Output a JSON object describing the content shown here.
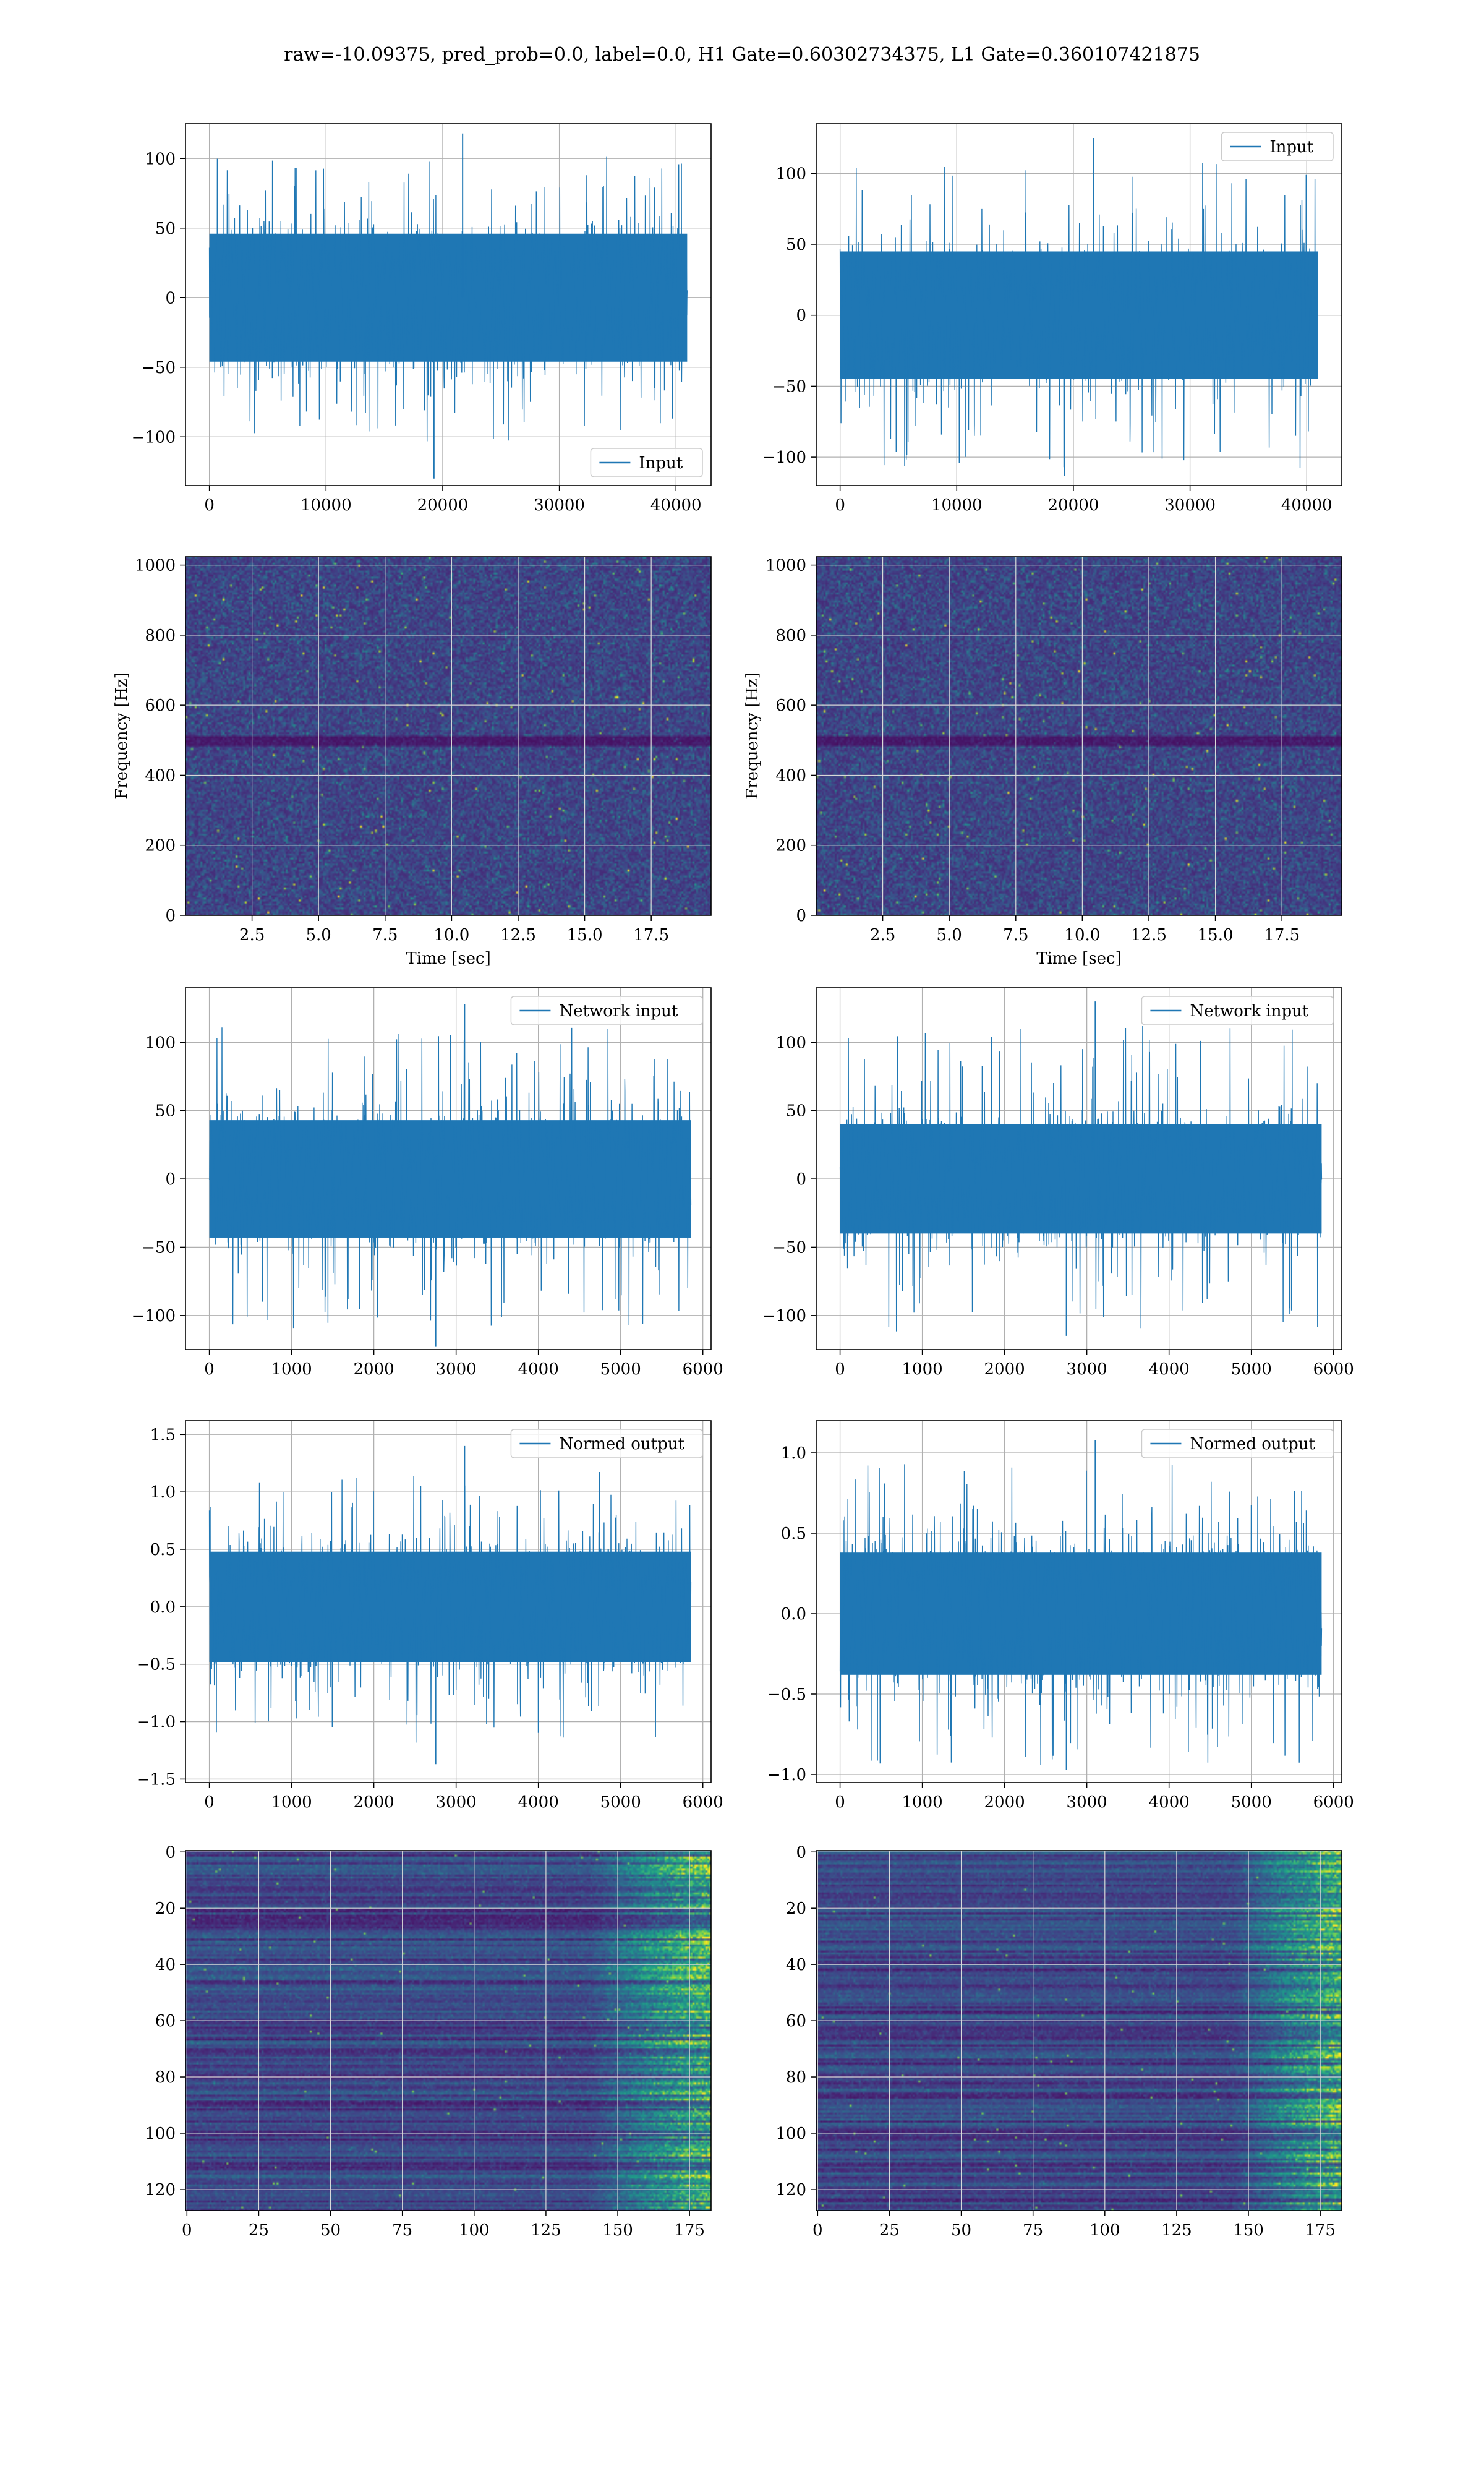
{
  "title": "raw=-10.09375, pred_prob=0.0, label=0.0, H1 Gate=0.60302734375, L1 Gate=0.360107421875",
  "colors": {
    "line": "#1f77b4",
    "grid": "#b0b0b0",
    "viridis_dark": "#440154",
    "viridis_mid": "#21918c",
    "viridis_bright": "#fde725"
  },
  "chart_data": [
    {
      "type": "line",
      "id": "h1-input",
      "xlim": [
        -2048,
        43008
      ],
      "ylim": [
        -135,
        125
      ],
      "xticks": [
        0,
        10000,
        20000,
        30000,
        40000
      ],
      "xticklabels": [
        "0",
        "10000",
        "20000",
        "30000",
        "40000"
      ],
      "yticks": [
        -100,
        -50,
        0,
        50,
        100
      ],
      "yticklabels": [
        "−100",
        "−50",
        "0",
        "50",
        "100"
      ],
      "x_range": [
        0,
        40959
      ],
      "noise_sigma": 22,
      "band": [
        -46,
        46
      ],
      "peak_max": 118,
      "peak_min": -130,
      "grid": true,
      "legend": "lower-right",
      "series": [
        {
          "name": "Input"
        }
      ]
    },
    {
      "type": "line",
      "id": "l1-input",
      "xlim": [
        -2048,
        43008
      ],
      "ylim": [
        -120,
        135
      ],
      "xticks": [
        0,
        10000,
        20000,
        30000,
        40000
      ],
      "xticklabels": [
        "0",
        "10000",
        "20000",
        "30000",
        "40000"
      ],
      "yticks": [
        -100,
        -50,
        0,
        50,
        100
      ],
      "yticklabels": [
        "−100",
        "−50",
        "0",
        "50",
        "100"
      ],
      "x_range": [
        0,
        40959
      ],
      "noise_sigma": 21,
      "band": [
        -45,
        45
      ],
      "peak_max": 125,
      "peak_min": -113,
      "grid": true,
      "legend": "upper-right",
      "series": [
        {
          "name": "Input"
        }
      ]
    },
    {
      "type": "heatmap",
      "id": "h1-spectrogram",
      "xlabel": "Time [sec]",
      "ylabel": "Frequency [Hz]",
      "xlim": [
        0,
        19.75
      ],
      "ylim": [
        0,
        1024
      ],
      "xticks": [
        2.5,
        5.0,
        7.5,
        10.0,
        12.5,
        15.0,
        17.5
      ],
      "xticklabels": [
        "2.5",
        "5.0",
        "7.5",
        "10.0",
        "12.5",
        "15.0",
        "17.5"
      ],
      "yticks": [
        0,
        200,
        400,
        600,
        800,
        1000
      ],
      "yticklabels": [
        "0",
        "200",
        "400",
        "600",
        "800",
        "1000"
      ],
      "colormap": "viridis",
      "dark_band_hz": 500,
      "grid": true
    },
    {
      "type": "heatmap",
      "id": "l1-spectrogram",
      "xlabel": "Time [sec]",
      "ylabel": "Frequency [Hz]",
      "xlim": [
        0,
        19.75
      ],
      "ylim": [
        0,
        1024
      ],
      "xticks": [
        2.5,
        5.0,
        7.5,
        10.0,
        12.5,
        15.0,
        17.5
      ],
      "xticklabels": [
        "2.5",
        "5.0",
        "7.5",
        "10.0",
        "12.5",
        "15.0",
        "17.5"
      ],
      "yticks": [
        0,
        200,
        400,
        600,
        800,
        1000
      ],
      "yticklabels": [
        "0",
        "200",
        "400",
        "600",
        "800",
        "1000"
      ],
      "colormap": "viridis",
      "dark_band_hz": 500,
      "grid": true
    },
    {
      "type": "line",
      "id": "h1-network-input",
      "xlim": [
        -290,
        6100
      ],
      "ylim": [
        -125,
        140
      ],
      "xticks": [
        0,
        1000,
        2000,
        3000,
        4000,
        5000,
        6000
      ],
      "xticklabels": [
        "0",
        "1000",
        "2000",
        "3000",
        "4000",
        "5000",
        "6000"
      ],
      "yticks": [
        -100,
        -50,
        0,
        50,
        100
      ],
      "yticklabels": [
        "−100",
        "−50",
        "0",
        "50",
        "100"
      ],
      "x_range": [
        0,
        5855
      ],
      "noise_sigma": 22,
      "band": [
        -43,
        43
      ],
      "peak_max": 128,
      "peak_min": -123,
      "grid": true,
      "legend": "upper-right",
      "series": [
        {
          "name": "Network input"
        }
      ]
    },
    {
      "type": "line",
      "id": "l1-network-input",
      "xlim": [
        -290,
        6100
      ],
      "ylim": [
        -125,
        140
      ],
      "xticks": [
        0,
        1000,
        2000,
        3000,
        4000,
        5000,
        6000
      ],
      "xticklabels": [
        "0",
        "1000",
        "2000",
        "3000",
        "4000",
        "5000",
        "6000"
      ],
      "yticks": [
        -100,
        -50,
        0,
        50,
        100
      ],
      "yticklabels": [
        "−100",
        "−50",
        "0",
        "50",
        "100"
      ],
      "x_range": [
        0,
        5855
      ],
      "noise_sigma": 20,
      "band": [
        -40,
        40
      ],
      "peak_max": 130,
      "peak_min": -115,
      "grid": true,
      "legend": "upper-right",
      "series": [
        {
          "name": "Network input"
        }
      ]
    },
    {
      "type": "line",
      "id": "h1-normed-output",
      "xlim": [
        -290,
        6100
      ],
      "ylim": [
        -1.53,
        1.62
      ],
      "xticks": [
        0,
        1000,
        2000,
        3000,
        4000,
        5000,
        6000
      ],
      "xticklabels": [
        "0",
        "1000",
        "2000",
        "3000",
        "4000",
        "5000",
        "6000"
      ],
      "yticks": [
        -1.5,
        -1.0,
        -0.5,
        0.0,
        0.5,
        1.0,
        1.5
      ],
      "yticklabels": [
        "−1.5",
        "−1.0",
        "−0.5",
        "0.0",
        "0.5",
        "1.0",
        "1.5"
      ],
      "x_range": [
        0,
        5855
      ],
      "noise_sigma": 0.24,
      "band": [
        -0.48,
        0.48
      ],
      "peak_max": 1.4,
      "peak_min": -1.37,
      "grid": true,
      "legend": "upper-right",
      "series": [
        {
          "name": "Normed output"
        }
      ]
    },
    {
      "type": "line",
      "id": "l1-normed-output",
      "xlim": [
        -290,
        6100
      ],
      "ylim": [
        -1.05,
        1.2
      ],
      "xticks": [
        0,
        1000,
        2000,
        3000,
        4000,
        5000,
        6000
      ],
      "xticklabels": [
        "0",
        "1000",
        "2000",
        "3000",
        "4000",
        "5000",
        "6000"
      ],
      "yticks": [
        -1.0,
        -0.5,
        0.0,
        0.5,
        1.0
      ],
      "yticklabels": [
        "−1.0",
        "−0.5",
        "0.0",
        "0.5",
        "1.0"
      ],
      "x_range": [
        0,
        5855
      ],
      "noise_sigma": 0.2,
      "band": [
        -0.38,
        0.38
      ],
      "peak_max": 1.08,
      "peak_min": -0.97,
      "grid": true,
      "legend": "upper-right",
      "series": [
        {
          "name": "Normed output"
        }
      ]
    },
    {
      "type": "heatmap",
      "id": "h1-feature-map",
      "xlim": [
        -0.5,
        182.5
      ],
      "ylim": [
        127.5,
        -0.5
      ],
      "xticks": [
        0,
        25,
        50,
        75,
        100,
        125,
        150,
        175
      ],
      "xticklabels": [
        "0",
        "25",
        "50",
        "75",
        "100",
        "125",
        "150",
        "175"
      ],
      "yticks": [
        0,
        20,
        40,
        60,
        80,
        100,
        120
      ],
      "yticklabels": [
        "0",
        "20",
        "40",
        "60",
        "80",
        "100",
        "120"
      ],
      "rows": 128,
      "cols": 183,
      "colormap": "viridis",
      "bright_from_col": 140,
      "grid": true
    },
    {
      "type": "heatmap",
      "id": "l1-feature-map",
      "xlim": [
        -0.5,
        182.5
      ],
      "ylim": [
        127.5,
        -0.5
      ],
      "xticks": [
        0,
        25,
        50,
        75,
        100,
        125,
        150,
        175
      ],
      "xticklabels": [
        "0",
        "25",
        "50",
        "75",
        "100",
        "125",
        "150",
        "175"
      ],
      "yticks": [
        0,
        20,
        40,
        60,
        80,
        100,
        120
      ],
      "yticklabels": [
        "0",
        "20",
        "40",
        "60",
        "80",
        "100",
        "120"
      ],
      "rows": 128,
      "cols": 183,
      "colormap": "viridis",
      "bright_from_col": 145,
      "grid": true
    }
  ]
}
